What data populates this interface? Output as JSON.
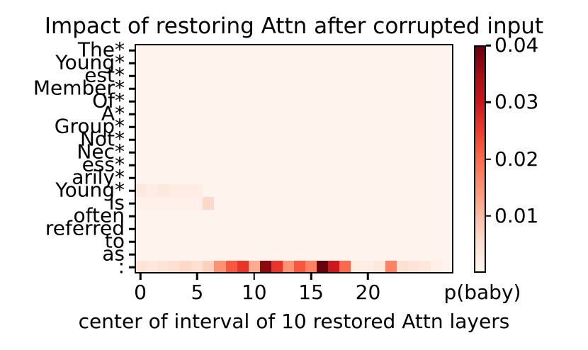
{
  "chart_data": {
    "type": "heatmap",
    "title": "Impact of restoring Attn after corrupted input",
    "xlabel": "center of interval of 10 restored Attn layers",
    "row_labels": [
      "The*",
      "Young*",
      "est*",
      "Member*",
      "Of*",
      "A*",
      "Group*",
      "Not*",
      "Nec*",
      "ess*",
      "arily*",
      "Young*",
      "is",
      "often",
      "referred",
      "to",
      "as",
      ":"
    ],
    "n_cols": 28,
    "n_rows": 18,
    "x_ticks": [
      {
        "value": 0,
        "label": "0"
      },
      {
        "value": 5,
        "label": "5"
      },
      {
        "value": 10,
        "label": "10"
      },
      {
        "value": 15,
        "label": "15"
      },
      {
        "value": 20,
        "label": "20"
      }
    ],
    "values_default": 0.0005,
    "value_overrides": [
      {
        "row": 11,
        "start_col": 0,
        "values": [
          0.003,
          0.002,
          0.003,
          0.002,
          0.002,
          0.002
        ]
      },
      {
        "row": 12,
        "start_col": 0,
        "values": [
          0.001,
          0.001,
          0.001,
          0.001,
          0.001,
          0.001,
          0.006
        ]
      },
      {
        "row": 17,
        "start_col": 0,
        "values": [
          0.004,
          0.003,
          0.004,
          0.005,
          0.006,
          0.005,
          0.007,
          0.015,
          0.022,
          0.026,
          0.012,
          0.037,
          0.026,
          0.015,
          0.022,
          0.017,
          0.04,
          0.03,
          0.02,
          0.002,
          0.002,
          0.003,
          0.017,
          0.005,
          0.004,
          0.003,
          0.0015,
          0.0005
        ]
      }
    ],
    "vmin": 0,
    "vmax": 0.04,
    "colormap": {
      "name": "Reds",
      "anchors": [
        [
          0.0,
          "#fff5f0"
        ],
        [
          0.125,
          "#fee0d2"
        ],
        [
          0.25,
          "#fcbba1"
        ],
        [
          0.375,
          "#fc9272"
        ],
        [
          0.5,
          "#fb6a4a"
        ],
        [
          0.625,
          "#ef3b2c"
        ],
        [
          0.75,
          "#cb181d"
        ],
        [
          0.875,
          "#a50f15"
        ],
        [
          1.0,
          "#67000d"
        ]
      ]
    },
    "colorbar": {
      "label": "p(baby)",
      "ticks": [
        {
          "value": 0.04,
          "label": "0.04"
        },
        {
          "value": 0.03,
          "label": "0.03"
        },
        {
          "value": 0.02,
          "label": "0.02"
        },
        {
          "value": 0.01,
          "label": "0.01"
        }
      ]
    },
    "layout_hints": {
      "legend": "colorbar-right",
      "grid": false,
      "spine_color": "#000000"
    }
  }
}
